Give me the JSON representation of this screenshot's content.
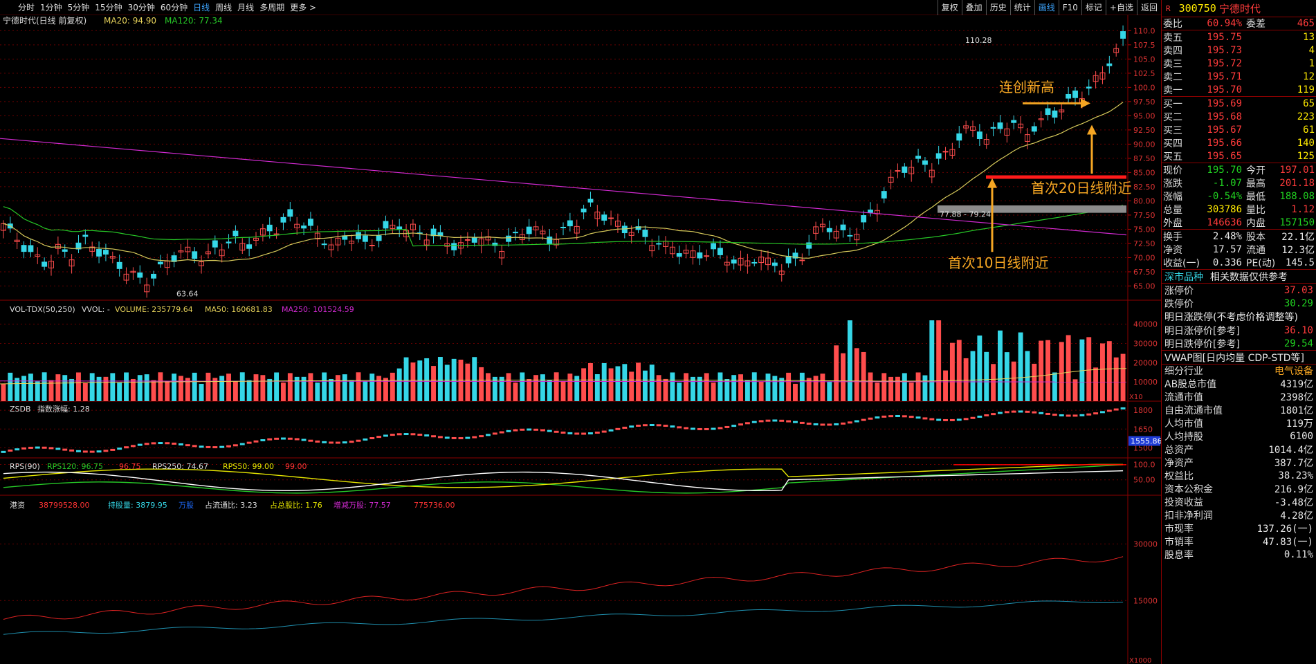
{
  "tabs": [
    "分时",
    "1分钟",
    "5分钟",
    "15分钟",
    "30分钟",
    "60分钟",
    "日线",
    "周线",
    "月线",
    "多周期",
    "更多"
  ],
  "active_tab": "日线",
  "tools": [
    "复权",
    "叠加",
    "历史",
    "统计",
    "画线",
    "F10",
    "标记",
    "+自选",
    "返回"
  ],
  "kline": {
    "legend": {
      "name": "宁德时代(日线 前复权)",
      "ma20": "MA20: 94.90",
      "ma120": "MA120: 77.34"
    },
    "ylabels": [
      "110.0",
      "107.5",
      "105.0",
      "102.5",
      "100.0",
      "97.50",
      "95.00",
      "92.50",
      "90.00",
      "87.50",
      "85.00",
      "82.50",
      "80.00",
      "77.50",
      "75.00",
      "72.50",
      "70.00",
      "67.50",
      "65.00"
    ],
    "high_label": "110.28",
    "low_label": "63.64",
    "zone_label": "77.88 - 79.24",
    "ann1": "连创新高",
    "ann2": "首次20日线附近",
    "ann3": "首次10日线附近",
    "colors": {
      "up": "#ff4d4d",
      "down": "#35d7e7",
      "ma20": "#d6c95a",
      "ma120": "#27c827",
      "ma250": "#d12ad1",
      "ann": "#f5a623",
      "mark": "#ff1a1a"
    }
  },
  "vol": {
    "legend": {
      "name": "VOL-TDX(50,250)",
      "vvol": "VVOL: -",
      "volume": "VOLUME: 235779.64",
      "ma50": "MA50: 160681.83",
      "ma250": "MA250: 101524.59"
    },
    "ylabels": [
      "40000",
      "30000",
      "20000",
      "10000"
    ],
    "unit": "X10"
  },
  "zsdb": {
    "legend": {
      "name": "ZSDB",
      "val": "指数涨幅: 1.28"
    },
    "ylabels": [
      "1800",
      "1650",
      "1500"
    ],
    "current": "1555.86"
  },
  "rps": {
    "legend": {
      "name": "RPS(90)",
      "rps120": "RPS120: 96.75",
      "rps120b": "96.75",
      "rps250": "RPS250: 74.67",
      "rps50": "RPS50: 99.00",
      "rps50b": "99.00"
    },
    "ylabels": [
      "100.0",
      "50.00"
    ]
  },
  "hk": {
    "legend": {
      "name": "港资",
      "v1": "38799528.00",
      "v2": "持股量: 3879.95",
      "v3": "万股",
      "v4": "占流通比: 3.23",
      "v5": "占总股比: 1.76",
      "v6": "增减万股: 77.57",
      "v7": "775736.00"
    },
    "ylabels": [
      "30000",
      "15000"
    ],
    "unit": "X1000"
  },
  "panel": {
    "code": "300750",
    "name": "宁德时代",
    "weibi": {
      "l1": "委比",
      "v1": "60.94%",
      "l2": "委差",
      "v2": "465"
    },
    "asks": [
      {
        "l": "卖五",
        "p": "195.75",
        "q": "13"
      },
      {
        "l": "卖四",
        "p": "195.73",
        "q": "4"
      },
      {
        "l": "卖三",
        "p": "195.72",
        "q": "1"
      },
      {
        "l": "卖二",
        "p": "195.71",
        "q": "12"
      },
      {
        "l": "卖一",
        "p": "195.70",
        "q": "119"
      }
    ],
    "bids": [
      {
        "l": "买一",
        "p": "195.69",
        "q": "65"
      },
      {
        "l": "买二",
        "p": "195.68",
        "q": "223"
      },
      {
        "l": "买三",
        "p": "195.67",
        "q": "61"
      },
      {
        "l": "买四",
        "p": "195.66",
        "q": "140"
      },
      {
        "l": "买五",
        "p": "195.65",
        "q": "125"
      }
    ],
    "quote": [
      {
        "l1": "现价",
        "v1": "195.70",
        "c1": "grn",
        "l2": "今开",
        "v2": "197.01",
        "c2": "red"
      },
      {
        "l1": "涨跌",
        "v1": "-1.07",
        "c1": "grn",
        "l2": "最高",
        "v2": "201.18",
        "c2": "red"
      },
      {
        "l1": "涨幅",
        "v1": "-0.54%",
        "c1": "grn",
        "l2": "最低",
        "v2": "188.08",
        "c2": "grn"
      },
      {
        "l1": "总量",
        "v1": "303786",
        "c1": "yel",
        "l2": "量比",
        "v2": "1.12",
        "c2": "red"
      },
      {
        "l1": "外盘",
        "v1": "146636",
        "c1": "red",
        "l2": "内盘",
        "v2": "157150",
        "c2": "grn"
      }
    ],
    "fin": [
      {
        "l1": "换手",
        "v1": "2.48%",
        "l2": "股本",
        "v2": "22.1亿"
      },
      {
        "l1": "净资",
        "v1": "17.57",
        "l2": "流通",
        "v2": "12.3亿"
      },
      {
        "l1": "收益(一)",
        "v1": "0.336",
        "l2": "PE(动)",
        "v2": "145.5"
      }
    ],
    "sh": "深市品种",
    "related": "相关数据仅供参考",
    "limits": [
      {
        "k": "涨停价",
        "v": "37.03",
        "c": "red"
      },
      {
        "k": "跌停价",
        "v": "30.29",
        "c": "grn"
      }
    ],
    "next_title": "明日涨跌停(不考虑价格调整等)",
    "next": [
      {
        "k": "明日涨停价[参考]",
        "v": "36.10",
        "c": "red"
      },
      {
        "k": "明日跌停价[参考]",
        "v": "29.54",
        "c": "grn"
      }
    ],
    "vwap": "VWAP图[日内均量 CDP-STD等]",
    "industry": {
      "k": "细分行业",
      "v": "电气设备"
    },
    "info": [
      {
        "k": "AB股总市值",
        "v": "4319亿"
      },
      {
        "k": "流通市值",
        "v": "2398亿"
      },
      {
        "k": "自由流通市值",
        "v": "1801亿"
      },
      {
        "k": "人均市值",
        "v": "119万"
      },
      {
        "k": "人均持股",
        "v": "6100"
      },
      {
        "k": "总资产",
        "v": "1014.4亿"
      },
      {
        "k": "净资产",
        "v": "387.7亿"
      },
      {
        "k": "权益比",
        "v": "38.23%"
      },
      {
        "k": "资本公积金",
        "v": "216.9亿"
      },
      {
        "k": "投资收益",
        "v": "-3.48亿"
      },
      {
        "k": "扣非净利润",
        "v": "4.28亿"
      },
      {
        "k": "市现率",
        "v": "137.26(一)"
      },
      {
        "k": "市销率",
        "v": "47.83(一)"
      },
      {
        "k": "股息率",
        "v": "0.11%"
      }
    ]
  }
}
